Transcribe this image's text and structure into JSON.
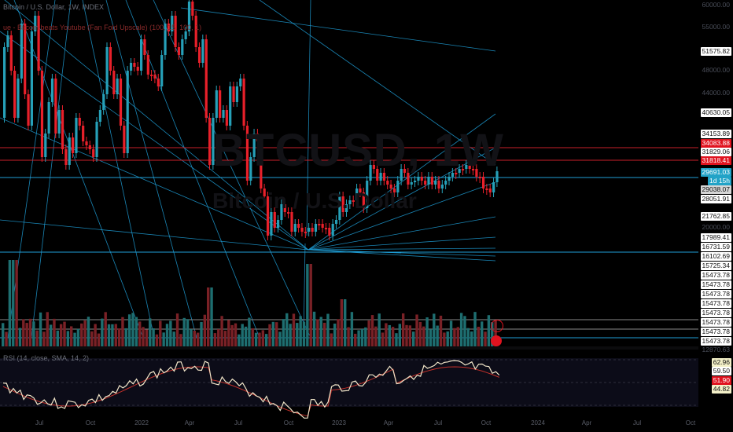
{
  "legend": {
    "symbol": "Bitcoin / U.S. Dollar, 1W, INDEX",
    "indicator": "ue - Bitcoin beats Youtube (Fan Fold Upscale) (100, 15, 100, 1)",
    "rsi": "RSI (14, close, SMA, 14, 2)"
  },
  "watermark": {
    "symbol": "BTCUSD, 1W",
    "name": "Bitcoin / U.S. Dollar"
  },
  "price_axis": {
    "grid_labels": [
      "60000.00",
      "55000.00",
      "48000.00",
      "44000.00",
      "20000.00"
    ],
    "tags": [
      {
        "text": "51575.82",
        "style": "plain"
      },
      {
        "text": "40630.05",
        "style": "plain"
      },
      {
        "text": "34153.89",
        "style": "plain"
      },
      {
        "text": "34083.88",
        "style": "red"
      },
      {
        "text": "31829.06",
        "style": "plain"
      },
      {
        "text": "31818.41",
        "style": "red"
      },
      {
        "text": "29691.03",
        "style": "teal"
      },
      {
        "text": "1d 15h",
        "style": "teal"
      },
      {
        "text": "29038.07",
        "style": "grey"
      },
      {
        "text": "28051.91",
        "style": "plain"
      },
      {
        "text": "21762.85",
        "style": "plain"
      },
      {
        "text": "17989.41",
        "style": "plain"
      },
      {
        "text": "16731.59",
        "style": "plain"
      },
      {
        "text": "16102.69",
        "style": "plain"
      },
      {
        "text": "15725.34",
        "style": "plain"
      },
      {
        "text": "15473.78",
        "style": "plain"
      },
      {
        "text": "15473.78",
        "style": "plain"
      },
      {
        "text": "15473.78",
        "style": "plain"
      },
      {
        "text": "15473.78",
        "style": "plain"
      },
      {
        "text": "15473.78",
        "style": "plain"
      },
      {
        "text": "15473.78",
        "style": "plain"
      },
      {
        "text": "15473.78",
        "style": "plain"
      },
      {
        "text": "15473.78",
        "style": "plain"
      },
      {
        "text": "12870.63",
        "style": "dim"
      }
    ]
  },
  "rsi_axis": [
    {
      "text": "62.96",
      "style": "yellow"
    },
    {
      "text": "59.50",
      "style": "plain"
    },
    {
      "text": "51.90",
      "style": "red"
    },
    {
      "text": "44.82",
      "style": "yellow"
    }
  ],
  "time_axis": [
    "Jul",
    "Oct",
    "2022",
    "Apr",
    "Jul",
    "Oct",
    "2023",
    "Apr",
    "Jul",
    "Oct",
    "2024",
    "Apr",
    "Jul",
    "Oct"
  ],
  "colors": {
    "up": "#26a0b8",
    "down": "#e8202a",
    "fan": "#1f9ed6",
    "rsi": "#f2e6c9",
    "rsi_ma": "#c2302a"
  }
}
